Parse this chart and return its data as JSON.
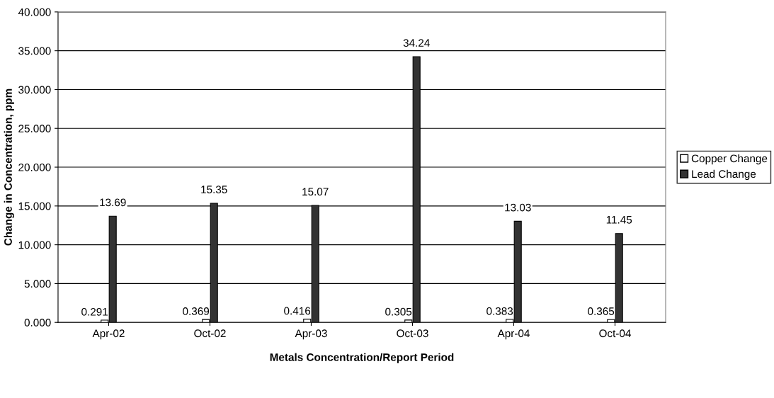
{
  "chart_data": {
    "type": "bar",
    "xlabel": "Metals Concentration/Report Period",
    "ylabel": "Change in Concentration, ppm",
    "categories": [
      "Apr-02",
      "Oct-02",
      "Apr-03",
      "Oct-03",
      "Apr-04",
      "Oct-04"
    ],
    "series": [
      {
        "name": "Copper Change",
        "color": "#ffffff",
        "values": [
          0.291,
          0.369,
          0.416,
          0.305,
          0.383,
          0.365
        ]
      },
      {
        "name": "Lead Change",
        "color": "#333333",
        "values": [
          13.69,
          15.35,
          15.07,
          34.24,
          13.03,
          11.45
        ]
      }
    ],
    "ylim": [
      0,
      40
    ],
    "yticks": [
      {
        "value": 0,
        "label": "0.000"
      },
      {
        "value": 5,
        "label": "5.000"
      },
      {
        "value": 10,
        "label": "10.000"
      },
      {
        "value": 15,
        "label": "15.000"
      },
      {
        "value": 20,
        "label": "20.000"
      },
      {
        "value": 25,
        "label": "25.000"
      },
      {
        "value": 30,
        "label": "30.000"
      },
      {
        "value": 35,
        "label": "35.000"
      },
      {
        "value": 40,
        "label": "40.000"
      }
    ],
    "grid": "y",
    "legend": "right",
    "data_labels": true
  }
}
